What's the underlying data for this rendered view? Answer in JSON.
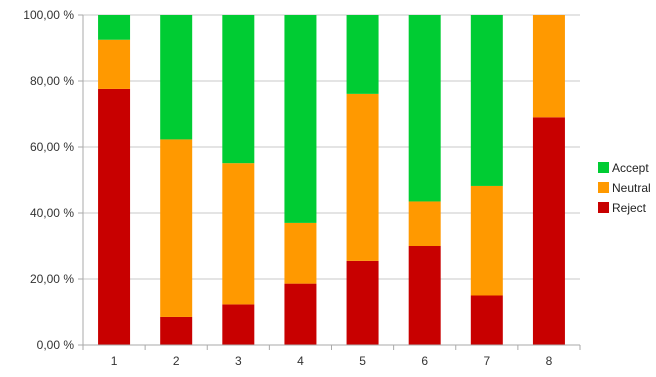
{
  "chart_data": {
    "type": "bar",
    "stacked": true,
    "categories": [
      "1",
      "2",
      "3",
      "4",
      "5",
      "6",
      "7",
      "8"
    ],
    "series": [
      {
        "name": "Reject",
        "color": "#c80000",
        "values": [
          77.6,
          8.5,
          12.3,
          18.6,
          25.5,
          30.0,
          15.0,
          69.0
        ]
      },
      {
        "name": "Neutral",
        "color": "#ff9900",
        "values": [
          14.9,
          53.8,
          42.8,
          18.4,
          50.6,
          13.5,
          33.2,
          31.0
        ]
      },
      {
        "name": "Accept",
        "color": "#00cc33",
        "values": [
          7.5,
          37.7,
          44.9,
          63.0,
          23.9,
          56.5,
          51.8,
          0.0
        ]
      }
    ],
    "ylim": [
      0,
      100
    ],
    "yticks": [
      0,
      20,
      40,
      60,
      80,
      100
    ],
    "ytick_labels": [
      "0,00 %",
      "20,00 %",
      "40,00 %",
      "60,00 %",
      "80,00 %",
      "100,00 %"
    ],
    "grid": true,
    "legend": "right",
    "legend_order": [
      "Accept",
      "Neutral",
      "Reject"
    ],
    "title": "",
    "xlabel": "",
    "ylabel": ""
  }
}
